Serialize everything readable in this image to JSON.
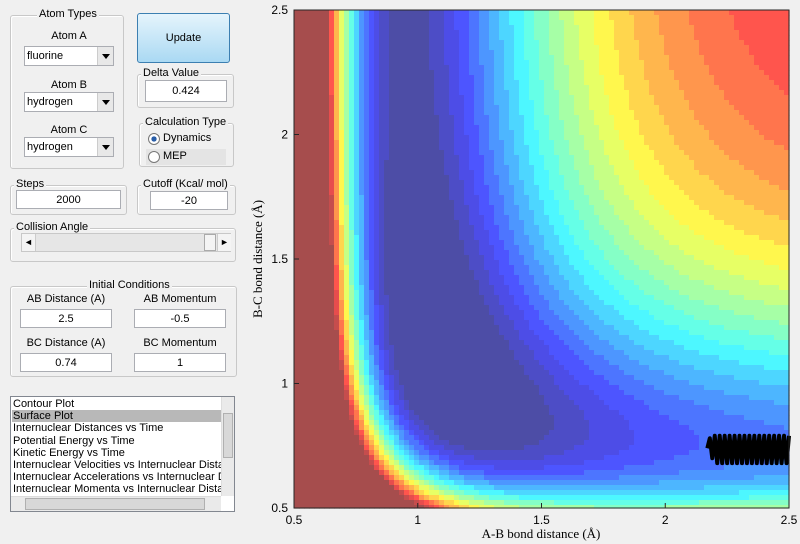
{
  "panel": {
    "atom_types": {
      "title": "Atom Types",
      "atom_a": {
        "label": "Atom A",
        "value": "fluorine"
      },
      "atom_b": {
        "label": "Atom B",
        "value": "hydrogen"
      },
      "atom_c": {
        "label": "Atom C",
        "value": "hydrogen"
      }
    },
    "update_button": "Update",
    "delta_value": {
      "label": "Delta Value",
      "value": "0.424"
    },
    "calculation_type": {
      "title": "Calculation Type",
      "options": [
        "Dynamics",
        "MEP"
      ],
      "selected_index": 0
    },
    "steps": {
      "label": "Steps",
      "value": "2000"
    },
    "cutoff": {
      "label": "Cutoff (Kcal/ mol)",
      "value": "-20"
    },
    "collision_angle": {
      "label": "Collision Angle"
    },
    "initial_conditions": {
      "title": "Initial Conditions",
      "ab_distance": {
        "label": "AB Distance (A)",
        "value": "2.5"
      },
      "ab_momentum": {
        "label": "AB Momentum",
        "value": "-0.5"
      },
      "bc_distance": {
        "label": "BC Distance (A)",
        "value": "0.74"
      },
      "bc_momentum": {
        "label": "BC Momentum",
        "value": "1"
      }
    },
    "plot_list": {
      "items": [
        "Contour Plot",
        "Surface Plot",
        "Internuclear Distances vs Time",
        "Potential Energy vs Time",
        "Kinetic Energy vs Time",
        "Internuclear Velocities vs Internuclear Distance",
        "Internuclear Accelerations vs Internuclear Distance",
        "Internuclear Momenta vs Internuclear Distance"
      ],
      "selected_index": 1
    }
  },
  "chart_data": {
    "type": "contour",
    "xlabel": "A-B bond distance (Å)",
    "ylabel": "B-C bond distance (Å)",
    "xlim": [
      0.5,
      2.5
    ],
    "ylim": [
      0.5,
      2.5
    ],
    "xticks": [
      0.5,
      1,
      1.5,
      2,
      2.5
    ],
    "yticks": [
      0.5,
      1,
      1.5,
      2,
      2.5
    ],
    "trajectory": {
      "color": "#000000",
      "x": [
        2.5,
        2.49,
        2.48,
        2.47,
        2.46,
        2.45,
        2.44,
        2.43,
        2.42,
        2.41,
        2.4,
        2.39,
        2.38,
        2.37,
        2.36,
        2.35,
        2.34,
        2.33,
        2.32,
        2.31,
        2.3,
        2.29,
        2.28,
        2.27,
        2.26,
        2.25,
        2.24,
        2.23,
        2.22,
        2.21,
        2.2,
        2.19,
        2.18,
        2.17
      ],
      "y": [
        0.79,
        0.68,
        0.79,
        0.68,
        0.79,
        0.68,
        0.79,
        0.68,
        0.79,
        0.68,
        0.79,
        0.68,
        0.79,
        0.68,
        0.79,
        0.68,
        0.79,
        0.68,
        0.79,
        0.68,
        0.79,
        0.68,
        0.79,
        0.68,
        0.79,
        0.68,
        0.79,
        0.68,
        0.79,
        0.68,
        0.79,
        0.7,
        0.78,
        0.74
      ]
    }
  }
}
